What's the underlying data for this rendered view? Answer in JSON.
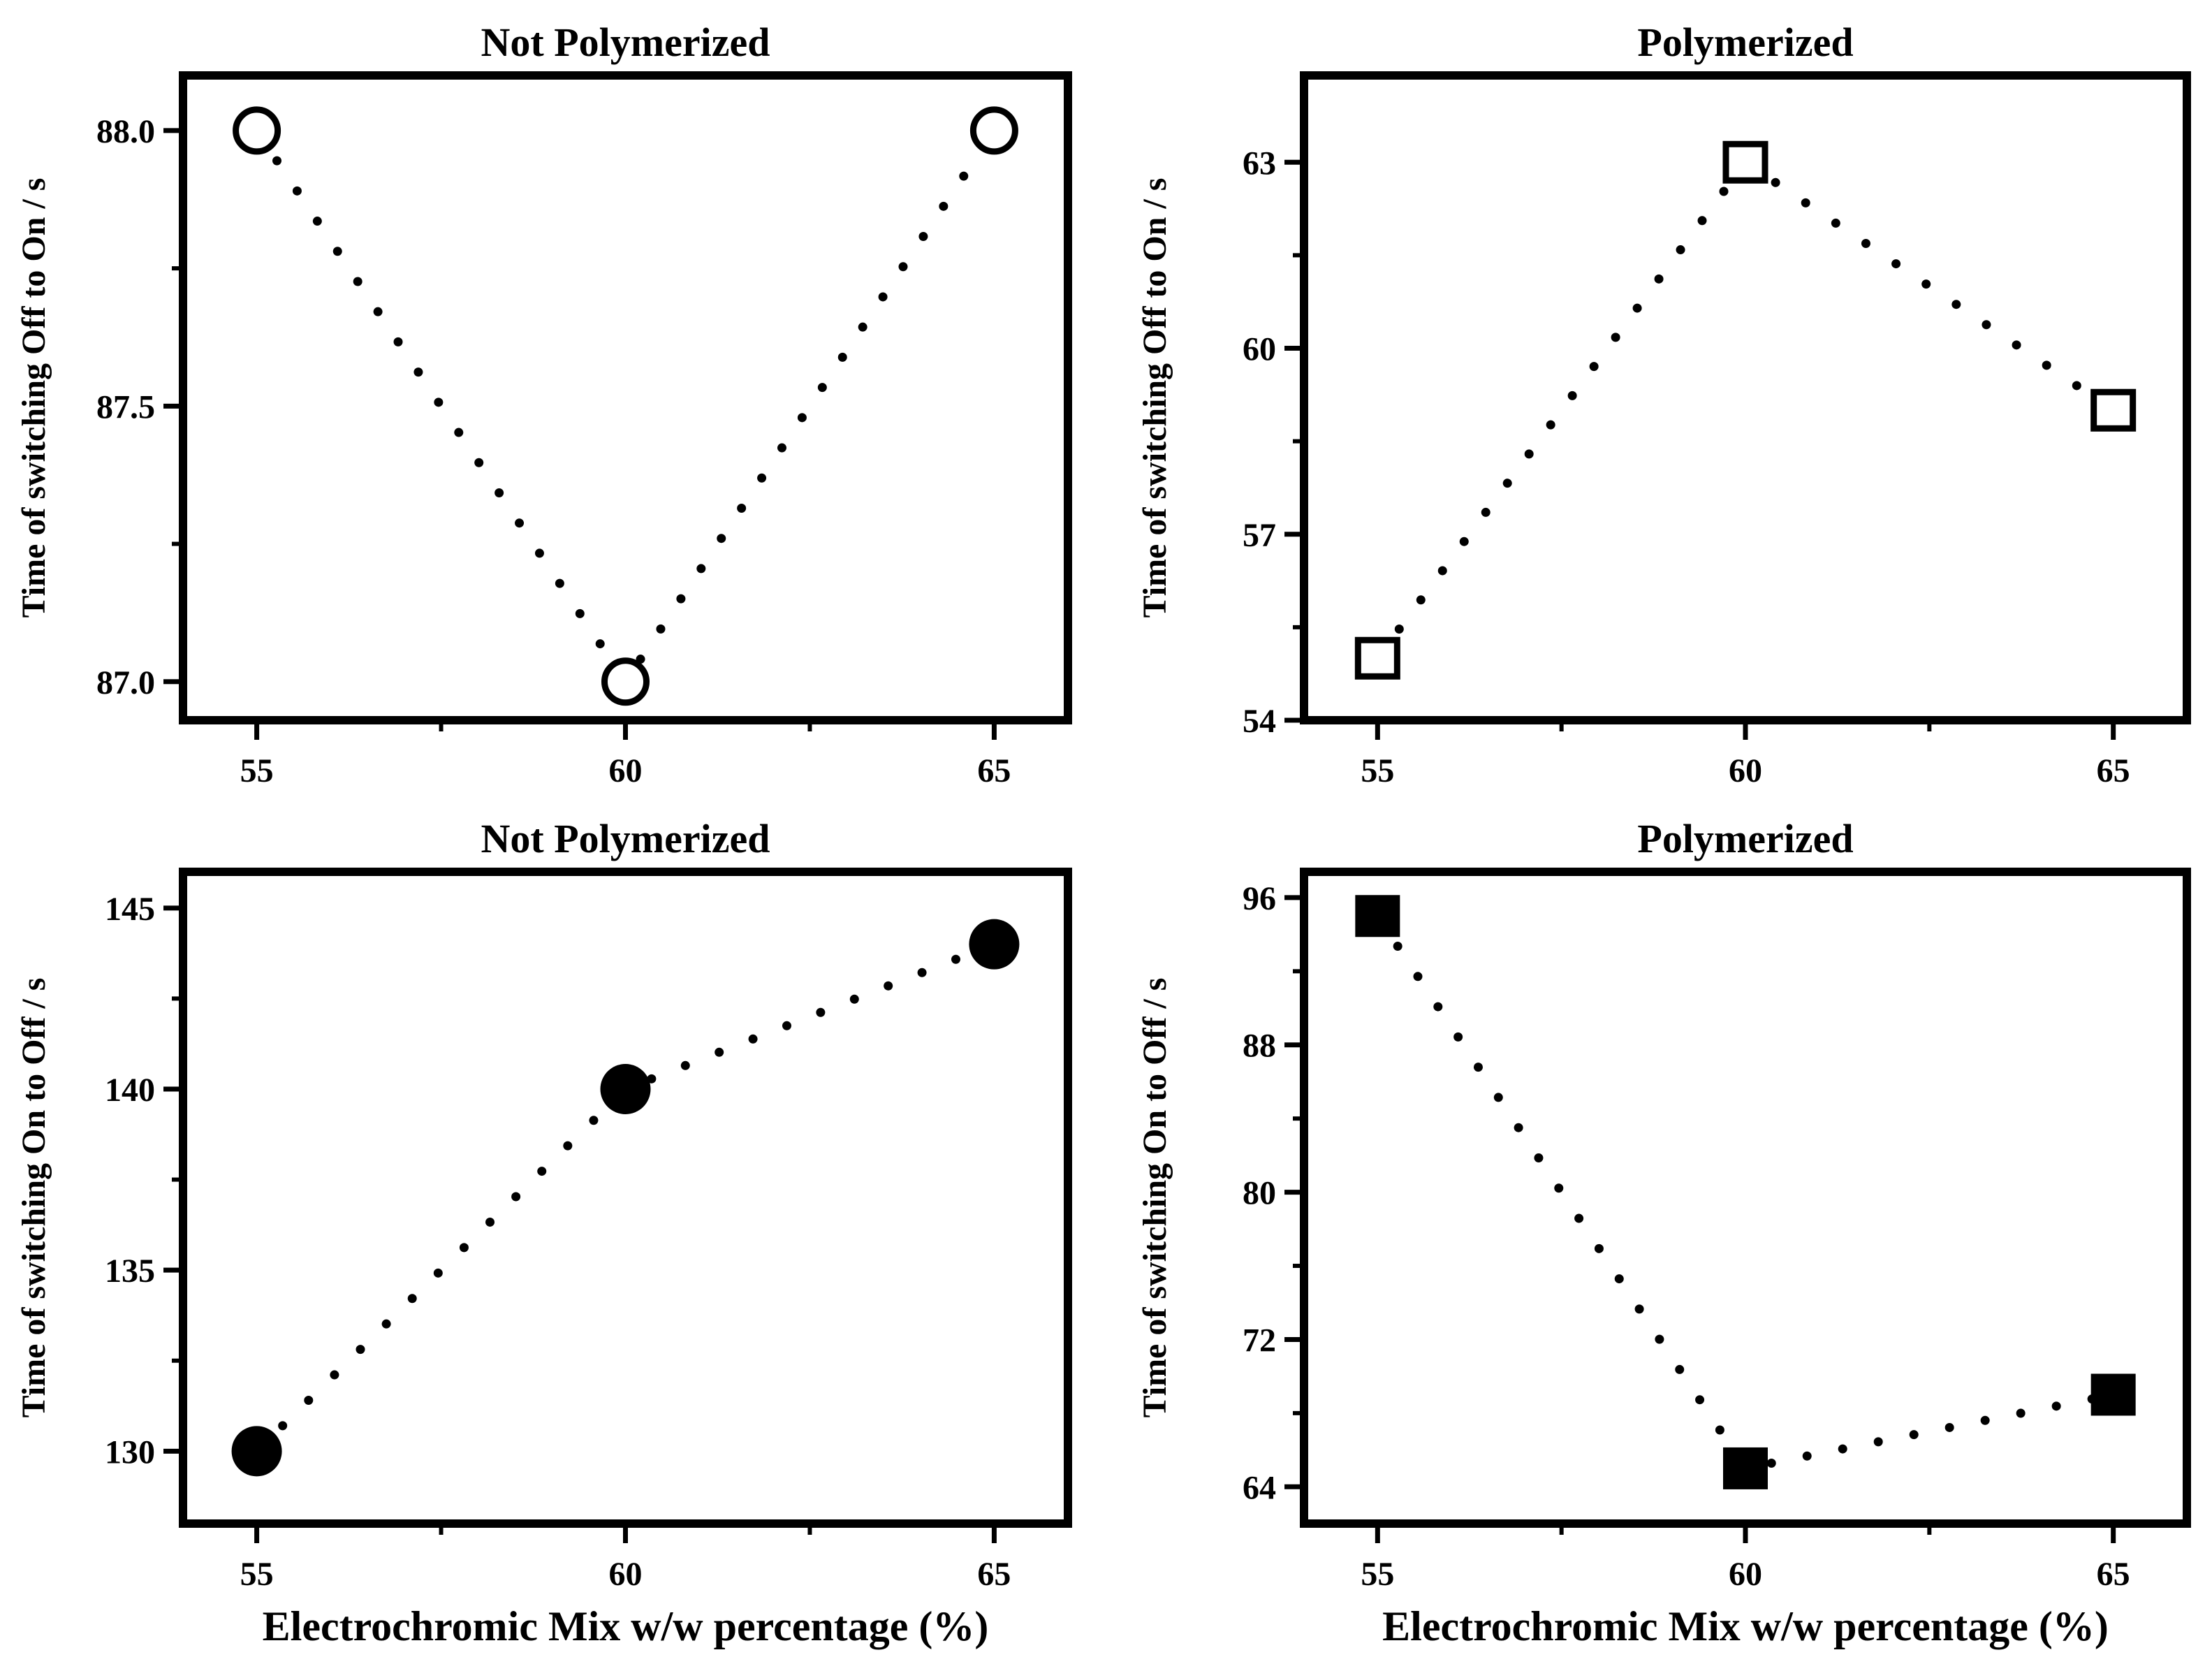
{
  "chart_data": [
    {
      "type": "scatter",
      "title": "Not Polymerized",
      "xlabel": "",
      "ylabel": "Time of switching Off to On / s",
      "x": [
        55,
        60,
        65
      ],
      "y": [
        88.0,
        87.0,
        88.0
      ],
      "xlim": [
        54,
        66
      ],
      "ylim": [
        86.93,
        88.1
      ],
      "xticks": [
        "55",
        "60",
        "65"
      ],
      "yticks": [
        "87.0",
        "87.5",
        "88.0"
      ],
      "yticks_values": [
        87.0,
        87.5,
        88.0
      ],
      "marker": "open-circle",
      "line_style": "dotted"
    },
    {
      "type": "scatter",
      "title": "Polymerized",
      "xlabel": "",
      "ylabel": "Time of switching Off to On / s",
      "x": [
        55,
        60,
        65
      ],
      "y": [
        55,
        63,
        59
      ],
      "xlim": [
        54,
        66
      ],
      "ylim": [
        54,
        64.4
      ],
      "xticks": [
        "55",
        "60",
        "65"
      ],
      "yticks": [
        "54",
        "57",
        "60",
        "63"
      ],
      "yticks_values": [
        54,
        57,
        60,
        63
      ],
      "marker": "open-square",
      "line_style": "dotted"
    },
    {
      "type": "scatter",
      "title": "Not Polymerized",
      "xlabel": "Electrochromic Mix w/w percentage (%)",
      "ylabel": "Time of switching On to Off / s",
      "x": [
        55,
        60,
        65
      ],
      "y": [
        130,
        140,
        144
      ],
      "xlim": [
        54,
        66
      ],
      "ylim": [
        128,
        146
      ],
      "xticks": [
        "55",
        "60",
        "65"
      ],
      "yticks": [
        "130",
        "135",
        "140",
        "145"
      ],
      "yticks_values": [
        130,
        135,
        140,
        145
      ],
      "marker": "filled-circle",
      "line_style": "dotted"
    },
    {
      "type": "scatter",
      "title": "Polymerized",
      "xlabel": "Electrochromic Mix w/w percentage (%)",
      "ylabel": "Time of switching On to Off / s",
      "x": [
        55,
        60,
        65
      ],
      "y": [
        95,
        65,
        69
      ],
      "xlim": [
        54,
        66
      ],
      "ylim": [
        62,
        97.4
      ],
      "xticks": [
        "55",
        "60",
        "65"
      ],
      "yticks": [
        "64",
        "72",
        "80",
        "88",
        "96"
      ],
      "yticks_values": [
        64,
        72,
        80,
        88,
        96
      ],
      "marker": "filled-square",
      "line_style": "dotted"
    }
  ]
}
